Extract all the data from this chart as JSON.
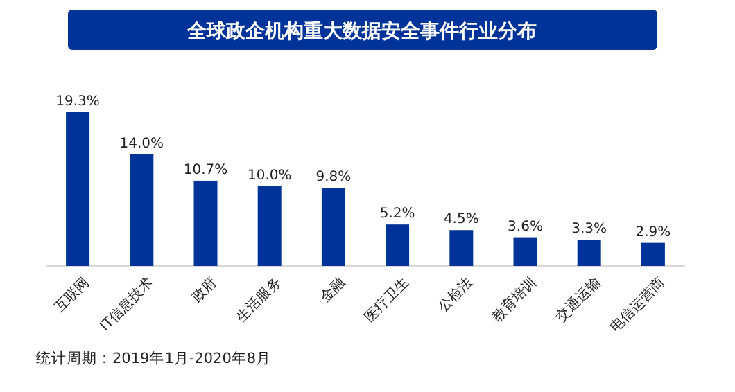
{
  "chart_data": {
    "type": "bar",
    "title": "全球政企机构重大数据安全事件行业分布",
    "categories": [
      "互联网",
      "IT信息技术",
      "政府",
      "生活服务",
      "金融",
      "医疗卫生",
      "公检法",
      "教育培训",
      "交通运输",
      "电信运营商"
    ],
    "values": [
      19.3,
      14.0,
      10.7,
      10.0,
      9.8,
      5.2,
      4.5,
      3.6,
      3.3,
      2.9
    ],
    "value_labels": [
      "19.3%",
      "14.0%",
      "10.7%",
      "10.0%",
      "9.8%",
      "5.2%",
      "4.5%",
      "3.6%",
      "3.3%",
      "2.9%"
    ],
    "color": "#003399",
    "annotations": [
      "统计周期：2019年1月-2020年8月"
    ]
  }
}
